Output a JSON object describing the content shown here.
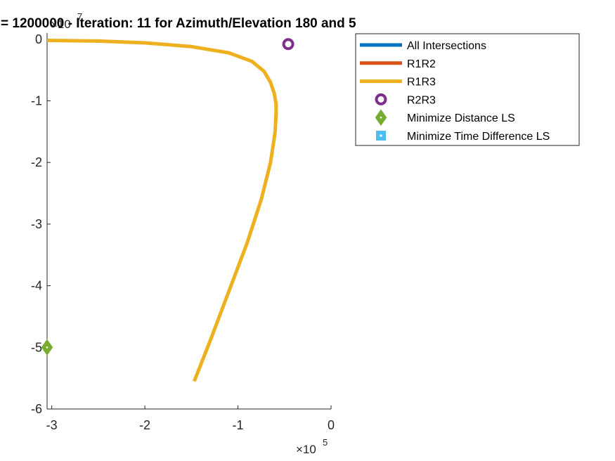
{
  "chart_data": {
    "type": "line",
    "title": "= 1200000 - Iteration: 11 for Azimuth/Elevation 180 and 5",
    "xlabel": "",
    "ylabel": "",
    "x_exponent": {
      "base": "×10",
      "power": "5"
    },
    "y_exponent": {
      "base": "×10",
      "power": "7"
    },
    "xlim": [
      -3.05,
      0
    ],
    "ylim": [
      -6,
      0.1
    ],
    "xticks": [
      -3,
      -2,
      -1,
      0
    ],
    "xtick_labels": [
      "-3",
      "-2",
      "-1",
      "0"
    ],
    "yticks": [
      0,
      -1,
      -2,
      -3,
      -4,
      -5,
      -6
    ],
    "ytick_labels": [
      "0",
      "-1",
      "-2",
      "-3",
      "-4",
      "-5",
      "-6"
    ],
    "grid": false,
    "legend_position": "outside top-right",
    "series": [
      {
        "name": "All Intersections",
        "kind": "line",
        "color": "#0072BD",
        "x": [],
        "y": []
      },
      {
        "name": "R1R2",
        "kind": "line",
        "color": "#D95319",
        "x": [],
        "y": []
      },
      {
        "name": "R1R3",
        "kind": "line",
        "color": "#EDB120",
        "x": [
          -3.05,
          -2.5,
          -2.0,
          -1.5,
          -1.1,
          -0.85,
          -0.72,
          -0.65,
          -0.61,
          -0.59,
          -0.59,
          -0.6,
          -0.65,
          -0.75,
          -0.9,
          -1.1,
          -1.3,
          -1.47
        ],
        "y": [
          -0.02,
          -0.03,
          -0.06,
          -0.12,
          -0.22,
          -0.36,
          -0.52,
          -0.7,
          -0.88,
          -1.05,
          -1.2,
          -1.5,
          -2.0,
          -2.6,
          -3.3,
          -4.1,
          -4.9,
          -5.55
        ]
      },
      {
        "name": "R2R3",
        "kind": "marker",
        "marker": "circle",
        "color": "#7E2F8E",
        "x": [
          -0.46
        ],
        "y": [
          -0.08
        ]
      },
      {
        "name": "Minimize Distance LS",
        "kind": "marker",
        "marker": "diamond",
        "color": "#77AC30",
        "x": [
          -3.05
        ],
        "y": [
          -5.0
        ]
      },
      {
        "name": "Minimize Time Difference LS",
        "kind": "marker",
        "marker": "square",
        "color": "#4DBEEE",
        "x": [],
        "y": []
      }
    ]
  }
}
